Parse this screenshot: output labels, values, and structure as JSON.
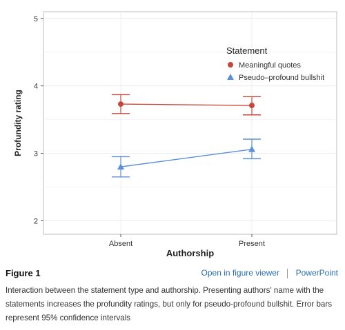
{
  "chart_data": {
    "type": "line",
    "categories": [
      "Absent",
      "Present"
    ],
    "xlabel": "Authorship",
    "ylabel": "Profundity rating",
    "ylim": [
      1.8,
      5.1
    ],
    "yticks": [
      2,
      3,
      4,
      5
    ],
    "grid": true,
    "legend": {
      "title": "Statement",
      "placement": "top-right"
    },
    "series": [
      {
        "name": "Meaningful quotes",
        "color": "#c8473b",
        "marker": "circle",
        "values": [
          3.73,
          3.71
        ],
        "ci_low": [
          3.59,
          3.57
        ],
        "ci_high": [
          3.87,
          3.84
        ]
      },
      {
        "name": "Pseudo–profound bullshit",
        "color": "#5b8fd8",
        "marker": "triangle",
        "values": [
          2.8,
          3.06
        ],
        "ci_low": [
          2.65,
          2.92
        ],
        "ci_high": [
          2.95,
          3.21
        ]
      }
    ]
  },
  "figure": {
    "label": "Figure 1",
    "open_viewer": "Open in figure viewer",
    "powerpoint": "PowerPoint",
    "caption": "Interaction between the statement type and authorship. Presenting authors' name with the statements increases the profundity ratings, but only for pseudo-profound bullshit. Error bars represent 95% confidence intervals"
  }
}
